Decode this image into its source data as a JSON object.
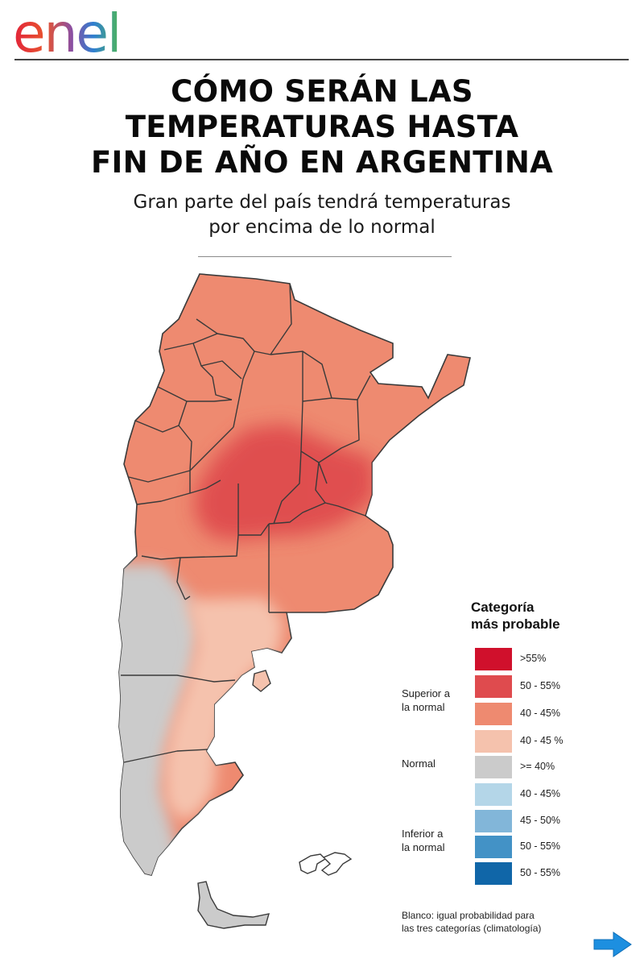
{
  "header": {
    "logo_text": "enel",
    "title_lines": [
      "CÓMO SERÁN LAS",
      "TEMPERATURAS HASTA",
      "FIN DE AÑO EN ARGENTINA"
    ],
    "subtitle_lines": [
      "Gran parte del país tendrá temperaturas",
      "por encima de lo normal"
    ]
  },
  "legend": {
    "title_lines": [
      "Categoría",
      "más probable"
    ],
    "groups": [
      {
        "lines": [
          "Superior a",
          "la normal"
        ]
      },
      {
        "lines": [
          "Normal"
        ]
      },
      {
        "lines": [
          "Inferior a",
          "la normal"
        ]
      }
    ],
    "items": [
      {
        "label": ">55%",
        "color": "#d0102c"
      },
      {
        "label": "50 - 55%",
        "color": "#df4b4e"
      },
      {
        "label": "40 - 45%",
        "color": "#ee8a70"
      },
      {
        "label": "40 - 45 %",
        "color": "#f5c2ad"
      },
      {
        "label": ">= 40%",
        "color": "#cbcbcb"
      },
      {
        "label": "40 - 45%",
        "color": "#b4d6e8"
      },
      {
        "label": "45 - 50%",
        "color": "#82b6d9"
      },
      {
        "label": "50 - 55%",
        "color": "#4392c6"
      },
      {
        "label": "50 - 55%",
        "color": "#1066a8"
      }
    ],
    "footnote_lines": [
      "Blanco: igual probabilidad para",
      "las tres categorías (climatología)"
    ]
  },
  "map": {
    "region_categories": {
      "north_and_center": "40 - 45%",
      "central_core": "50 - 55%",
      "northern_patagonia_east": "40 - 45 %",
      "western_and_southern_patagonia": ">= 40%"
    }
  },
  "colors": {
    "text": "#111111",
    "navigation_arrow": "#1d8fe0"
  },
  "navigation": {
    "next_icon": "arrow-right-icon"
  }
}
